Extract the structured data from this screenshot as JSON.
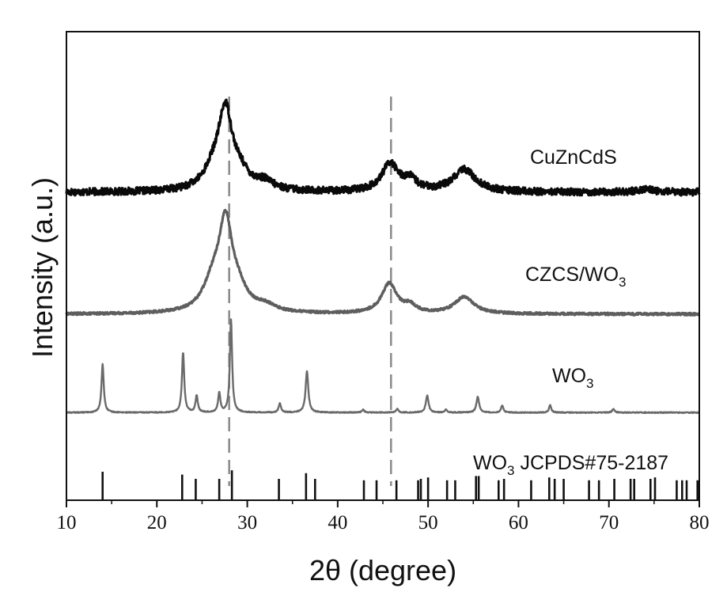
{
  "chart_data": {
    "type": "line",
    "xlabel": "2θ (degree)",
    "ylabel": "Intensity (a.u.)",
    "xlim": [
      10,
      80
    ],
    "xticks": [
      10,
      20,
      30,
      40,
      50,
      60,
      70,
      80
    ],
    "yticks_shown": false,
    "reference_lines_x": [
      28.0,
      45.9
    ],
    "colors": {
      "CuZnCdS": "#0a0a0a",
      "CZCS/WO3": "#5e5e5e",
      "WO3": "#6a6a6a",
      "reference": "#111111",
      "guide": "#8a8a8a"
    },
    "series": [
      {
        "name": "CuZnCdS",
        "label_text": "CuZnCdS",
        "baseline": 0.7,
        "noise": 0.45,
        "peaks": [
          {
            "x": 27.6,
            "height": 9.2,
            "width": 0.9
          },
          {
            "x": 26.4,
            "height": 2.6,
            "width": 1.4
          },
          {
            "x": 29.2,
            "height": 1.8,
            "width": 1.2
          },
          {
            "x": 31.9,
            "height": 1.0,
            "width": 1.2
          },
          {
            "x": 45.8,
            "height": 3.5,
            "width": 1.1
          },
          {
            "x": 48.0,
            "height": 1.3,
            "width": 0.9
          },
          {
            "x": 54.0,
            "height": 2.8,
            "width": 1.5
          },
          {
            "x": 74.0,
            "height": 0.4,
            "width": 1.0
          }
        ]
      },
      {
        "name": "CZCS/WO3",
        "label_text": "CZCS/WO",
        "label_sub": "3",
        "baseline": 0.3,
        "noise": 0.15,
        "peaks": [
          {
            "x": 27.6,
            "height": 10.5,
            "width": 0.9
          },
          {
            "x": 26.2,
            "height": 3.4,
            "width": 1.3
          },
          {
            "x": 29.0,
            "height": 2.2,
            "width": 1.2
          },
          {
            "x": 32.0,
            "height": 0.8,
            "width": 1.4
          },
          {
            "x": 45.7,
            "height": 3.8,
            "width": 1.0
          },
          {
            "x": 48.0,
            "height": 0.9,
            "width": 0.8
          },
          {
            "x": 54.0,
            "height": 2.1,
            "width": 1.3
          }
        ]
      },
      {
        "name": "WO3",
        "label_text": "WO",
        "label_sub": "3",
        "baseline": 0.1,
        "noise": 0.08,
        "peaks": [
          {
            "x": 14.0,
            "height": 8.0,
            "width": 0.15
          },
          {
            "x": 22.9,
            "height": 10.0,
            "width": 0.15
          },
          {
            "x": 24.4,
            "height": 2.8,
            "width": 0.15
          },
          {
            "x": 26.9,
            "height": 3.2,
            "width": 0.15
          },
          {
            "x": 28.2,
            "height": 15.5,
            "width": 0.15
          },
          {
            "x": 33.6,
            "height": 1.5,
            "width": 0.15
          },
          {
            "x": 36.6,
            "height": 6.8,
            "width": 0.18
          },
          {
            "x": 42.8,
            "height": 0.5,
            "width": 0.15
          },
          {
            "x": 46.6,
            "height": 0.6,
            "width": 0.15
          },
          {
            "x": 49.9,
            "height": 2.8,
            "width": 0.18
          },
          {
            "x": 52.0,
            "height": 0.5,
            "width": 0.15
          },
          {
            "x": 55.5,
            "height": 2.6,
            "width": 0.18
          },
          {
            "x": 58.2,
            "height": 1.2,
            "width": 0.15
          },
          {
            "x": 63.5,
            "height": 1.2,
            "width": 0.15
          },
          {
            "x": 70.5,
            "height": 0.6,
            "width": 0.15
          }
        ]
      }
    ],
    "reference": {
      "label_text": "WO",
      "label_sub": "3",
      "label_rest": " JCPDS#75-2187",
      "lines": [
        {
          "x": 14.0,
          "h": 1.0
        },
        {
          "x": 22.8,
          "h": 0.9
        },
        {
          "x": 24.3,
          "h": 0.75
        },
        {
          "x": 26.9,
          "h": 0.75
        },
        {
          "x": 28.3,
          "h": 1.05
        },
        {
          "x": 33.5,
          "h": 0.75
        },
        {
          "x": 36.5,
          "h": 0.95
        },
        {
          "x": 37.5,
          "h": 0.75
        },
        {
          "x": 42.9,
          "h": 0.7
        },
        {
          "x": 44.3,
          "h": 0.7
        },
        {
          "x": 46.5,
          "h": 0.7
        },
        {
          "x": 48.9,
          "h": 0.7
        },
        {
          "x": 49.2,
          "h": 0.75
        },
        {
          "x": 50.0,
          "h": 0.8
        },
        {
          "x": 52.1,
          "h": 0.7
        },
        {
          "x": 53.0,
          "h": 0.7
        },
        {
          "x": 55.3,
          "h": 0.85
        },
        {
          "x": 55.6,
          "h": 0.85
        },
        {
          "x": 57.8,
          "h": 0.7
        },
        {
          "x": 58.4,
          "h": 0.75
        },
        {
          "x": 61.4,
          "h": 0.7
        },
        {
          "x": 63.4,
          "h": 0.8
        },
        {
          "x": 64.0,
          "h": 0.75
        },
        {
          "x": 65.0,
          "h": 0.75
        },
        {
          "x": 67.8,
          "h": 0.7
        },
        {
          "x": 68.9,
          "h": 0.7
        },
        {
          "x": 70.6,
          "h": 0.75
        },
        {
          "x": 72.4,
          "h": 0.75
        },
        {
          "x": 72.8,
          "h": 0.75
        },
        {
          "x": 74.6,
          "h": 0.75
        },
        {
          "x": 75.1,
          "h": 0.8
        },
        {
          "x": 77.5,
          "h": 0.7
        },
        {
          "x": 78.1,
          "h": 0.7
        },
        {
          "x": 78.6,
          "h": 0.7
        },
        {
          "x": 79.8,
          "h": 0.7
        }
      ]
    }
  }
}
